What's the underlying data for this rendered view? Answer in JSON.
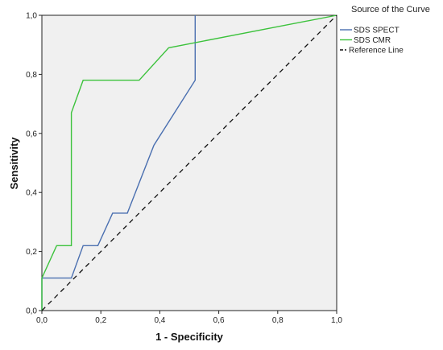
{
  "chart_data": {
    "type": "line",
    "xlabel": "1 - Specificity",
    "ylabel": "Sensitivity",
    "xlim": [
      0.0,
      1.0
    ],
    "ylim": [
      0.0,
      1.0
    ],
    "x_ticks": [
      "0,0",
      "0,2",
      "0,4",
      "0,6",
      "0,8",
      "1,0"
    ],
    "y_ticks": [
      "0,0",
      "0,2",
      "0,4",
      "0,6",
      "0,8",
      "1,0"
    ],
    "grid": false,
    "legend_position": "right",
    "legend_title": "Source of the Curve",
    "series": [
      {
        "name": "SDS  SPECT",
        "color": "#4a6fb0",
        "x": [
          0.0,
          0.0,
          0.1,
          0.14,
          0.19,
          0.24,
          0.29,
          0.38,
          0.52,
          0.52
        ],
        "y": [
          0.0,
          0.11,
          0.11,
          0.22,
          0.22,
          0.33,
          0.33,
          0.56,
          0.78,
          1.0
        ]
      },
      {
        "name": "SDS  CMR",
        "color": "#3cc23c",
        "x": [
          0.0,
          0.0,
          0.05,
          0.1,
          0.1,
          0.14,
          0.33,
          0.43,
          1.0
        ],
        "y": [
          0.0,
          0.11,
          0.22,
          0.22,
          0.67,
          0.78,
          0.78,
          0.89,
          1.0
        ]
      },
      {
        "name": "Reference Line",
        "color": "#111111",
        "dashed": true,
        "x": [
          0.0,
          1.0
        ],
        "y": [
          0.0,
          1.0
        ]
      }
    ]
  }
}
